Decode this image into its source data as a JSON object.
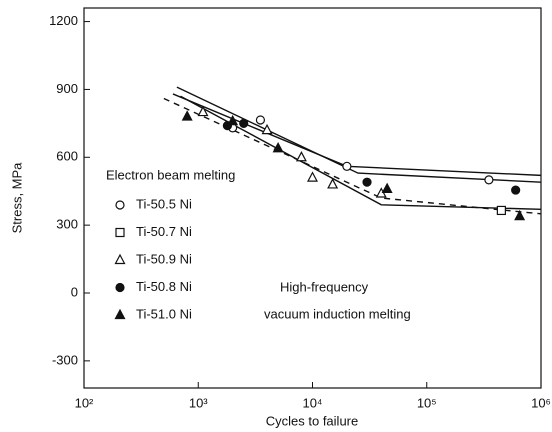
{
  "chart_data": {
    "type": "scatter",
    "y_label": "Stress, MPa",
    "x_label": "Cycles to failure",
    "log_x": true,
    "xlim": [
      100,
      1000000
    ],
    "ylim": [
      -420,
      1260
    ],
    "xticks": [
      {
        "value": 100,
        "label": "10²"
      },
      {
        "value": 1000,
        "label": "10³"
      },
      {
        "value": 10000,
        "label": "10⁴"
      },
      {
        "value": 100000,
        "label": "10⁵"
      },
      {
        "value": 1000000,
        "label": "10⁶"
      }
    ],
    "yticks": [
      -300,
      0,
      300,
      600,
      900,
      1200
    ],
    "legend_title": "Electron beam melting",
    "annotations": [
      "High-frequency",
      "vacuum induction melting"
    ],
    "series": [
      {
        "name": "Ti-50.5 Ni",
        "marker": "circle-open",
        "color": "#111111",
        "x": [
          2000,
          3500,
          20000,
          350000
        ],
        "values": [
          730,
          765,
          560,
          500
        ]
      },
      {
        "name": "Ti-50.7 Ni",
        "marker": "square-open",
        "color": "#111111",
        "x": [
          450000
        ],
        "values": [
          365
        ]
      },
      {
        "name": "Ti-50.9 Ni",
        "marker": "triangle-open",
        "color": "#111111",
        "x": [
          1100,
          4000,
          8000,
          10000,
          15000,
          40000
        ],
        "values": [
          800,
          720,
          600,
          510,
          480,
          440
        ]
      },
      {
        "name": "Ti-50.8 Ni",
        "marker": "circle-filled",
        "color": "#111111",
        "x": [
          1800,
          2500,
          30000,
          600000
        ],
        "values": [
          740,
          750,
          490,
          455
        ]
      },
      {
        "name": "Ti-51.0 Ni",
        "marker": "triangle-filled",
        "color": "#111111",
        "x": [
          800,
          2000,
          5000,
          45000,
          650000
        ],
        "values": [
          780,
          760,
          640,
          460,
          340
        ]
      }
    ],
    "lines": [
      {
        "style": "solid",
        "x": [
          600,
          20000,
          1000000
        ],
        "y": [
          880,
          560,
          520
        ]
      },
      {
        "style": "solid",
        "x": [
          650,
          25000,
          1000000
        ],
        "y": [
          910,
          530,
          490
        ]
      },
      {
        "style": "solid",
        "x": [
          700,
          40000,
          1000000
        ],
        "y": [
          870,
          390,
          370
        ]
      },
      {
        "style": "dashed",
        "x": [
          500,
          40000,
          1000000
        ],
        "y": [
          860,
          420,
          350
        ]
      }
    ]
  }
}
